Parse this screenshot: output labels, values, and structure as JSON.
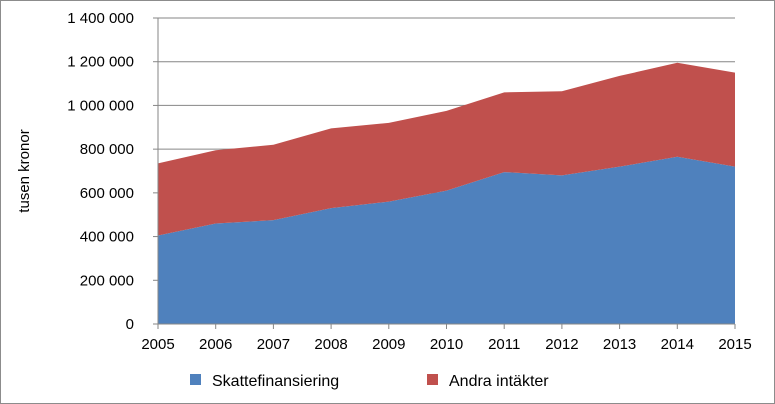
{
  "chart_data": {
    "type": "area",
    "stacked": true,
    "categories": [
      "2005",
      "2006",
      "2007",
      "2008",
      "2009",
      "2010",
      "2011",
      "2012",
      "2013",
      "2014",
      "2015"
    ],
    "series": [
      {
        "name": "Skattefinansiering",
        "color": "#4f81bd",
        "values": [
          405000,
          460000,
          475000,
          530000,
          560000,
          610000,
          695000,
          680000,
          720000,
          765000,
          720000
        ]
      },
      {
        "name": "Andra intäkter",
        "color": "#c0504d",
        "values": [
          330000,
          335000,
          345000,
          365000,
          360000,
          365000,
          365000,
          385000,
          415000,
          430000,
          430000
        ]
      }
    ],
    "ylabel": "tusen kronor",
    "ylim": [
      0,
      1400000
    ],
    "yticks": [
      0,
      200000,
      400000,
      600000,
      800000,
      1000000,
      1200000,
      1400000
    ],
    "ytick_labels": [
      "0",
      "200 000",
      "400 000",
      "600 000",
      "800 000",
      "1 000 000",
      "1 200 000",
      "1 400 000"
    ],
    "grid": true,
    "legend_position": "bottom"
  }
}
